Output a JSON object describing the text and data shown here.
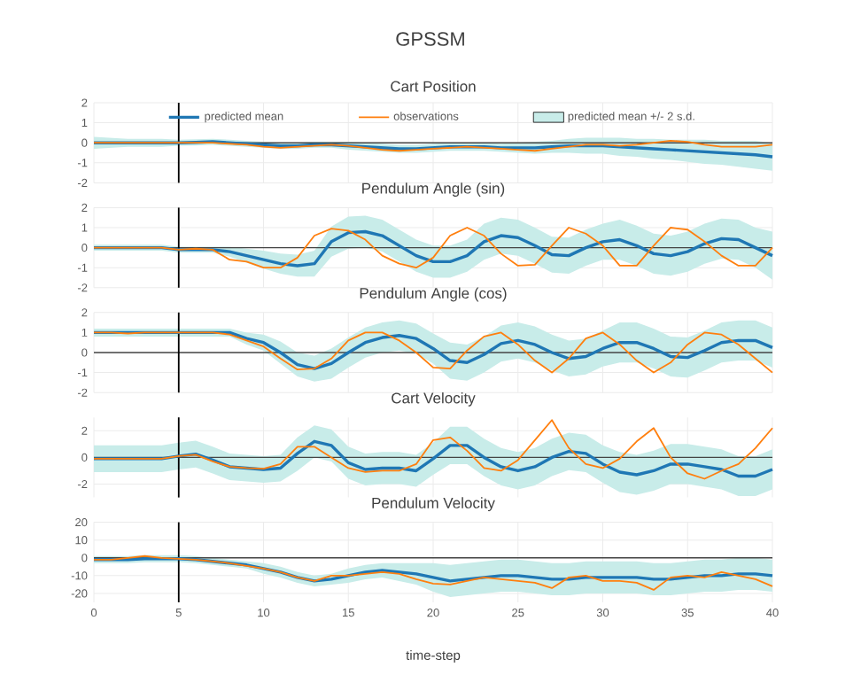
{
  "chart_data": [
    {
      "type": "line",
      "title": "GPSSM",
      "subtitle": "Cart Position",
      "x": [
        0,
        1,
        2,
        3,
        4,
        5,
        6,
        7,
        8,
        9,
        10,
        11,
        12,
        13,
        14,
        15,
        16,
        17,
        18,
        19,
        20,
        21,
        22,
        23,
        24,
        25,
        26,
        27,
        28,
        29,
        30,
        31,
        32,
        33,
        34,
        35,
        36,
        37,
        38,
        39,
        40
      ],
      "xlim": [
        0,
        40
      ],
      "xticks": [
        0,
        5,
        10,
        15,
        20,
        25,
        30,
        35,
        40
      ],
      "ylim": [
        -2,
        2
      ],
      "yticks": [
        -2,
        -1,
        0,
        1,
        2
      ],
      "tick_labels": "y",
      "grid": true,
      "legend": "top",
      "ref_lines": [
        {
          "axis": "y",
          "value": 0,
          "color": "#444444"
        },
        {
          "axis": "x",
          "value": 5,
          "color": "#000000"
        }
      ],
      "series": [
        {
          "name": "predicted mean",
          "color": "#1f77b4",
          "values": [
            0,
            0,
            0,
            0,
            0,
            0,
            0.02,
            0.05,
            0,
            -0.05,
            -0.1,
            -0.15,
            -0.15,
            -0.1,
            -0.1,
            -0.15,
            -0.2,
            -0.25,
            -0.3,
            -0.3,
            -0.25,
            -0.2,
            -0.2,
            -0.2,
            -0.25,
            -0.25,
            -0.25,
            -0.2,
            -0.15,
            -0.15,
            -0.15,
            -0.2,
            -0.25,
            -0.3,
            -0.35,
            -0.4,
            -0.45,
            -0.5,
            -0.55,
            -0.6,
            -0.7
          ]
        },
        {
          "name": "observations",
          "color": "#ff7f0e",
          "values": [
            0,
            0,
            0,
            0,
            0,
            0,
            0,
            0,
            -0.05,
            -0.1,
            -0.2,
            -0.25,
            -0.2,
            -0.15,
            -0.1,
            -0.15,
            -0.25,
            -0.35,
            -0.4,
            -0.35,
            -0.3,
            -0.25,
            -0.2,
            -0.25,
            -0.3,
            -0.35,
            -0.4,
            -0.3,
            -0.2,
            -0.1,
            -0.1,
            -0.15,
            -0.1,
            0,
            0.1,
            0.05,
            -0.1,
            -0.2,
            -0.2,
            -0.2,
            -0.1
          ]
        },
        {
          "name": "predicted mean +/- 2 s.d.",
          "type": "area",
          "color": "#c8ece9",
          "values": [
            null,
            null,
            null,
            null,
            null,
            null,
            null,
            null,
            null,
            null,
            null,
            null,
            null,
            null,
            null,
            null,
            null,
            null,
            null,
            null,
            null,
            null,
            null,
            null,
            null,
            null,
            null,
            null,
            null,
            null,
            null,
            null,
            null,
            null,
            null,
            null,
            null,
            null,
            null,
            null,
            null
          ],
          "lower": [
            -0.3,
            -0.25,
            -0.2,
            -0.2,
            -0.2,
            -0.15,
            -0.13,
            -0.1,
            -0.15,
            -0.2,
            -0.25,
            -0.3,
            -0.3,
            -0.25,
            -0.25,
            -0.35,
            -0.4,
            -0.45,
            -0.5,
            -0.5,
            -0.45,
            -0.4,
            -0.4,
            -0.4,
            -0.45,
            -0.5,
            -0.55,
            -0.5,
            -0.5,
            -0.55,
            -0.55,
            -0.65,
            -0.7,
            -0.8,
            -0.85,
            -0.95,
            -1.05,
            -1.1,
            -1.2,
            -1.3,
            -1.4
          ],
          "upper": [
            0.3,
            0.25,
            0.2,
            0.2,
            0.2,
            0.15,
            0.17,
            0.2,
            0.15,
            0.1,
            0.05,
            0,
            0,
            0.05,
            0.05,
            0.05,
            0,
            -0.05,
            -0.1,
            -0.1,
            -0.05,
            0,
            0,
            0,
            -0.05,
            0,
            0.05,
            0.1,
            0.2,
            0.25,
            0.25,
            0.25,
            0.2,
            0.2,
            0.15,
            0.15,
            0.15,
            0.1,
            0.1,
            0.1,
            0
          ]
        }
      ]
    },
    {
      "type": "line",
      "title": "Pendulum Angle (sin)",
      "x": [
        0,
        1,
        2,
        3,
        4,
        5,
        6,
        7,
        8,
        9,
        10,
        11,
        12,
        13,
        14,
        15,
        16,
        17,
        18,
        19,
        20,
        21,
        22,
        23,
        24,
        25,
        26,
        27,
        28,
        29,
        30,
        31,
        32,
        33,
        34,
        35,
        36,
        37,
        38,
        39,
        40
      ],
      "xlim": [
        0,
        40
      ],
      "xticks": [
        0,
        5,
        10,
        15,
        20,
        25,
        30,
        35,
        40
      ],
      "ylim": [
        -2,
        2
      ],
      "yticks": [
        -2,
        -1,
        0,
        1,
        2
      ],
      "tick_labels": "y",
      "grid": true,
      "ref_lines": [
        {
          "axis": "y",
          "value": 0,
          "color": "#444444"
        },
        {
          "axis": "x",
          "value": 5,
          "color": "#000000"
        }
      ],
      "series": [
        {
          "color": "#1f77b4",
          "values": [
            0,
            0,
            0,
            0,
            0,
            -0.1,
            -0.1,
            -0.1,
            -0.2,
            -0.4,
            -0.6,
            -0.8,
            -0.9,
            -0.8,
            0.3,
            0.75,
            0.8,
            0.6,
            0.1,
            -0.4,
            -0.7,
            -0.7,
            -0.4,
            0.3,
            0.6,
            0.5,
            0.1,
            -0.35,
            -0.4,
            0,
            0.3,
            0.4,
            0.1,
            -0.3,
            -0.4,
            -0.2,
            0.2,
            0.45,
            0.4,
            0,
            -0.4
          ]
        },
        {
          "color": "#ff7f0e",
          "values": [
            0,
            0,
            0,
            0,
            0,
            -0.1,
            -0.05,
            -0.1,
            -0.6,
            -0.7,
            -1.0,
            -1.0,
            -0.5,
            0.6,
            0.95,
            0.85,
            0.4,
            -0.4,
            -0.8,
            -1.0,
            -0.5,
            0.6,
            1.0,
            0.6,
            -0.3,
            -0.9,
            -0.85,
            0.1,
            1.0,
            0.7,
            0.1,
            -0.9,
            -0.9,
            0.1,
            1.0,
            0.9,
            0.3,
            -0.4,
            -0.9,
            -0.9,
            0
          ]
        },
        {
          "type": "area",
          "color": "#c8ece9",
          "values": [
            null,
            null,
            null,
            null,
            null,
            null,
            null,
            null,
            null,
            null,
            null,
            null,
            null,
            null,
            null,
            null,
            null,
            null,
            null,
            null,
            null,
            null,
            null,
            null,
            null,
            null,
            null,
            null,
            null,
            null,
            null,
            null,
            null,
            null,
            null,
            null,
            null,
            null,
            null,
            null,
            null
          ],
          "lower": [
            -0.15,
            -0.15,
            -0.15,
            -0.15,
            -0.15,
            -0.25,
            -0.25,
            -0.25,
            -0.45,
            -0.75,
            -1.05,
            -1.3,
            -1.45,
            -1.45,
            -0.45,
            -0.05,
            0,
            -0.2,
            -0.7,
            -1.2,
            -1.5,
            -1.5,
            -1.2,
            -0.6,
            -0.3,
            -0.4,
            -0.8,
            -1.25,
            -1.3,
            -0.9,
            -0.6,
            -0.6,
            -0.9,
            -1.3,
            -1.4,
            -1.2,
            -0.8,
            -0.55,
            -0.6,
            -1,
            -1.6
          ],
          "upper": [
            0.15,
            0.15,
            0.15,
            0.15,
            0.15,
            0.05,
            0.05,
            0.05,
            0.05,
            -0.05,
            -0.15,
            -0.3,
            -0.35,
            -0.15,
            1.05,
            1.55,
            1.6,
            1.4,
            0.9,
            0.4,
            0.1,
            0.1,
            0.4,
            1.2,
            1.5,
            1.4,
            1.0,
            0.55,
            0.5,
            0.9,
            1.2,
            1.4,
            1.1,
            0.7,
            0.6,
            0.8,
            1.2,
            1.45,
            1.4,
            1,
            0.8
          ]
        }
      ]
    },
    {
      "type": "line",
      "title": "Pendulum Angle (cos)",
      "x": [
        0,
        1,
        2,
        3,
        4,
        5,
        6,
        7,
        8,
        9,
        10,
        11,
        12,
        13,
        14,
        15,
        16,
        17,
        18,
        19,
        20,
        21,
        22,
        23,
        24,
        25,
        26,
        27,
        28,
        29,
        30,
        31,
        32,
        33,
        34,
        35,
        36,
        37,
        38,
        39,
        40
      ],
      "xlim": [
        0,
        40
      ],
      "xticks": [
        0,
        5,
        10,
        15,
        20,
        25,
        30,
        35,
        40
      ],
      "ylim": [
        -2,
        2
      ],
      "yticks": [
        -2,
        -1,
        0,
        1,
        2
      ],
      "tick_labels": "y",
      "grid": true,
      "ref_lines": [
        {
          "axis": "y",
          "value": 0,
          "color": "#444444"
        },
        {
          "axis": "x",
          "value": 5,
          "color": "#000000"
        }
      ],
      "series": [
        {
          "color": "#1f77b4",
          "values": [
            1,
            1,
            1,
            1,
            1,
            1,
            1,
            1,
            1,
            0.7,
            0.5,
            0,
            -0.6,
            -0.8,
            -0.55,
            0,
            0.5,
            0.75,
            0.85,
            0.7,
            0.2,
            -0.4,
            -0.5,
            -0.1,
            0.45,
            0.6,
            0.4,
            0,
            -0.3,
            -0.2,
            0.2,
            0.5,
            0.5,
            0.2,
            -0.2,
            -0.25,
            0.1,
            0.5,
            0.6,
            0.6,
            0.25
          ]
        },
        {
          "color": "#ff7f0e",
          "values": [
            1,
            1,
            0.95,
            1,
            1,
            1,
            1,
            1,
            0.9,
            0.6,
            0.3,
            -0.3,
            -0.85,
            -0.8,
            -0.3,
            0.6,
            1.0,
            1.0,
            0.6,
            0,
            -0.75,
            -0.8,
            0.1,
            0.8,
            1.0,
            0.4,
            -0.4,
            -1.0,
            -0.3,
            0.7,
            1.0,
            0.4,
            -0.4,
            -1.0,
            -0.5,
            0.4,
            1.0,
            0.9,
            0.4,
            -0.3,
            -1.0
          ]
        },
        {
          "type": "area",
          "color": "#c8ece9",
          "values": [
            null,
            null,
            null,
            null,
            null,
            null,
            null,
            null,
            null,
            null,
            null,
            null,
            null,
            null,
            null,
            null,
            null,
            null,
            null,
            null,
            null,
            null,
            null,
            null,
            null,
            null,
            null,
            null,
            null,
            null,
            null,
            null,
            null,
            null,
            null,
            null,
            null,
            null,
            null,
            null,
            null
          ],
          "lower": [
            0.8,
            0.8,
            0.8,
            0.8,
            0.8,
            0.8,
            0.8,
            0.8,
            0.8,
            0.4,
            0.1,
            -0.55,
            -1.2,
            -1.45,
            -1.3,
            -0.75,
            -0.25,
            0,
            0.1,
            -0.05,
            -0.55,
            -1.3,
            -1.4,
            -1.0,
            -0.45,
            -0.3,
            -0.5,
            -0.9,
            -1.2,
            -1.1,
            -0.7,
            -0.5,
            -0.5,
            -0.8,
            -1.2,
            -1.25,
            -0.9,
            -0.5,
            -0.4,
            -0.4,
            -0.75
          ],
          "upper": [
            1.2,
            1.2,
            1.2,
            1.2,
            1.2,
            1.2,
            1.2,
            1.2,
            1.2,
            1.0,
            0.9,
            0.55,
            0,
            -0.15,
            0.2,
            0.75,
            1.25,
            1.5,
            1.6,
            1.45,
            0.95,
            0.5,
            0.4,
            0.8,
            1.35,
            1.5,
            1.3,
            0.9,
            0.6,
            0.7,
            1.1,
            1.5,
            1.5,
            1.2,
            0.8,
            0.75,
            1.1,
            1.5,
            1.6,
            1.6,
            1.25
          ]
        }
      ]
    },
    {
      "type": "line",
      "title": "Cart Velocity",
      "x": [
        0,
        1,
        2,
        3,
        4,
        5,
        6,
        7,
        8,
        9,
        10,
        11,
        12,
        13,
        14,
        15,
        16,
        17,
        18,
        19,
        20,
        21,
        22,
        23,
        24,
        25,
        26,
        27,
        28,
        29,
        30,
        31,
        32,
        33,
        34,
        35,
        36,
        37,
        38,
        39,
        40
      ],
      "xlim": [
        0,
        40
      ],
      "xticks": [
        0,
        5,
        10,
        15,
        20,
        25,
        30,
        35,
        40
      ],
      "ylim": [
        -3,
        3
      ],
      "yticks": [
        -2,
        0,
        2
      ],
      "tick_labels": "y",
      "grid": true,
      "ref_lines": [
        {
          "axis": "y",
          "value": 0,
          "color": "#444444"
        },
        {
          "axis": "x",
          "value": 5,
          "color": "#000000"
        }
      ],
      "series": [
        {
          "color": "#1f77b4",
          "values": [
            -0.1,
            -0.1,
            -0.1,
            -0.1,
            -0.1,
            0.1,
            0.25,
            -0.2,
            -0.7,
            -0.8,
            -0.9,
            -0.8,
            0.3,
            1.2,
            0.9,
            -0.4,
            -0.9,
            -0.8,
            -0.8,
            -1.0,
            -0.1,
            0.9,
            0.9,
            0,
            -0.7,
            -1.0,
            -0.7,
            0,
            0.45,
            0.3,
            -0.5,
            -1.1,
            -1.3,
            -1.0,
            -0.5,
            -0.5,
            -0.7,
            -0.9,
            -1.4,
            -1.4,
            -0.9
          ]
        },
        {
          "color": "#ff7f0e",
          "values": [
            -0.1,
            -0.1,
            -0.1,
            -0.1,
            -0.1,
            0.1,
            0.2,
            -0.3,
            -0.7,
            -0.8,
            -0.85,
            -0.5,
            0.8,
            0.8,
            0,
            -0.8,
            -1.1,
            -1.0,
            -1.0,
            -0.5,
            1.3,
            1.5,
            0.5,
            -0.8,
            -1.0,
            -0.2,
            1.3,
            2.8,
            0.7,
            -0.5,
            -0.8,
            -0.1,
            1.2,
            2.2,
            0,
            -1.2,
            -1.6,
            -1.0,
            -0.5,
            0.7,
            2.2
          ]
        },
        {
          "type": "area",
          "color": "#c8ece9",
          "values": [
            null,
            null,
            null,
            null,
            null,
            null,
            null,
            null,
            null,
            null,
            null,
            null,
            null,
            null,
            null,
            null,
            null,
            null,
            null,
            null,
            null,
            null,
            null,
            null,
            null,
            null,
            null,
            null,
            null,
            null,
            null,
            null,
            null,
            null,
            null,
            null,
            null,
            null,
            null,
            null,
            null
          ],
          "lower": [
            -1.1,
            -1.1,
            -1.1,
            -1.1,
            -1.1,
            -0.9,
            -0.75,
            -1.2,
            -1.7,
            -1.8,
            -1.9,
            -1.8,
            -1.0,
            0,
            -0.3,
            -1.6,
            -2.1,
            -2.0,
            -2.0,
            -2.2,
            -1.3,
            -0.5,
            -0.5,
            -1.4,
            -2.1,
            -2.4,
            -2.1,
            -1.4,
            -0.95,
            -1.1,
            -1.9,
            -2.6,
            -2.8,
            -2.5,
            -2.0,
            -2.0,
            -2.2,
            -2.4,
            -2.9,
            -2.9,
            -2.4
          ],
          "upper": [
            0.9,
            0.9,
            0.9,
            0.9,
            0.9,
            1.1,
            1.25,
            0.8,
            0.3,
            0.2,
            0.1,
            0.2,
            1.5,
            2.4,
            2.1,
            0.8,
            0.3,
            0.4,
            0.4,
            0.2,
            1.1,
            2.3,
            2.3,
            1.4,
            0.7,
            0.4,
            0.7,
            1.4,
            1.85,
            1.7,
            0.9,
            0.4,
            0.2,
            0.5,
            1.0,
            1.0,
            0.8,
            0.6,
            0.1,
            0.1,
            0.6
          ]
        }
      ]
    },
    {
      "type": "line",
      "title": "Pendulum Velocity",
      "xlabel": "time-step",
      "x": [
        0,
        1,
        2,
        3,
        4,
        5,
        6,
        7,
        8,
        9,
        10,
        11,
        12,
        13,
        14,
        15,
        16,
        17,
        18,
        19,
        20,
        21,
        22,
        23,
        24,
        25,
        26,
        27,
        28,
        29,
        30,
        31,
        32,
        33,
        34,
        35,
        36,
        37,
        38,
        39,
        40
      ],
      "xlim": [
        0,
        40
      ],
      "xticks": [
        0,
        5,
        10,
        15,
        20,
        25,
        30,
        35,
        40
      ],
      "ylim": [
        -25,
        20
      ],
      "yticks": [
        -20,
        -10,
        0,
        10,
        20
      ],
      "grid": true,
      "ref_lines": [
        {
          "axis": "y",
          "value": 0,
          "color": "#444444"
        },
        {
          "axis": "x",
          "value": 5,
          "color": "#000000"
        }
      ],
      "series": [
        {
          "color": "#1f77b4",
          "values": [
            -1,
            -1,
            -1,
            -0.5,
            -0.5,
            -0.5,
            -1,
            -2,
            -3,
            -4,
            -6,
            -8,
            -11,
            -13,
            -12,
            -10,
            -8,
            -7,
            -8,
            -9,
            -11,
            -13,
            -12,
            -11,
            -10,
            -10,
            -11,
            -12,
            -12,
            -11,
            -11,
            -11,
            -11,
            -12,
            -12,
            -11,
            -10,
            -10,
            -9,
            -9,
            -10
          ]
        },
        {
          "color": "#ff7f0e",
          "values": [
            -1,
            -1,
            0,
            1,
            0,
            -0.5,
            -1,
            -2,
            -3,
            -4.5,
            -6,
            -8,
            -11,
            -13,
            -10,
            -10,
            -9,
            -8,
            -9,
            -12,
            -14.5,
            -15,
            -13,
            -11,
            -12,
            -13,
            -14,
            -17,
            -11,
            -10,
            -13,
            -13,
            -14,
            -18,
            -11,
            -10,
            -11,
            -8,
            -10,
            -12,
            -16
          ]
        },
        {
          "type": "area",
          "color": "#c8ece9",
          "values": [
            null,
            null,
            null,
            null,
            null,
            null,
            null,
            null,
            null,
            null,
            null,
            null,
            null,
            null,
            null,
            null,
            null,
            null,
            null,
            null,
            null,
            null,
            null,
            null,
            null,
            null,
            null,
            null,
            null,
            null,
            null,
            null,
            null,
            null,
            null,
            null,
            null,
            null,
            null,
            null,
            null
          ],
          "lower": [
            -3,
            -3,
            -3,
            -2.5,
            -2.5,
            -2.5,
            -3,
            -4,
            -5,
            -6,
            -9,
            -11,
            -14,
            -16,
            -15,
            -14,
            -12,
            -11,
            -13,
            -15,
            -19,
            -22,
            -21,
            -20,
            -19,
            -19,
            -20,
            -21,
            -21,
            -20,
            -20,
            -20,
            -20,
            -21,
            -21,
            -20,
            -19,
            -19,
            -18,
            -18,
            -19
          ],
          "upper": [
            1,
            1,
            1,
            1.5,
            1.5,
            1.5,
            1,
            0,
            -1,
            -2,
            -3,
            -5,
            -8,
            -10,
            -9,
            -6,
            -4,
            -3,
            -3,
            -3,
            -3,
            -4,
            -3,
            -2,
            -1,
            -1,
            -2,
            -3,
            -3,
            -2,
            -2,
            -2,
            -2,
            -3,
            -3,
            -2,
            -1,
            -1,
            0,
            0,
            -1
          ]
        }
      ]
    }
  ]
}
